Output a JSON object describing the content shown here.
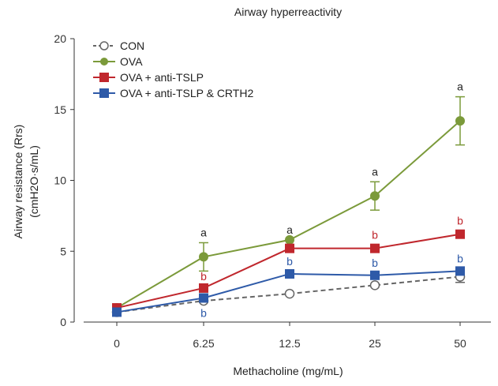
{
  "chart_data": {
    "type": "line",
    "title": "Airway hyperreactivity",
    "xlabel": "Methacholine (mg/mL)",
    "ylabel_line1": "Airway resistance (Rrs)",
    "ylabel_line2": "(cmH2O·s/mL)",
    "categories": [
      "0",
      "6.25",
      "12.5",
      "25",
      "50"
    ],
    "ylim": [
      0,
      20
    ],
    "yticks": [
      "0",
      "5",
      "10",
      "15",
      "20"
    ],
    "legend_position": "top-left",
    "grid": false,
    "series": [
      {
        "name": "CON",
        "color": "#666666",
        "marker": "open-circle",
        "line": "dashed",
        "values": [
          0.7,
          1.5,
          2.0,
          2.6,
          3.2
        ],
        "errors": [
          0,
          0,
          0,
          0,
          0.4
        ],
        "annotations": [
          "",
          "",
          "",
          "",
          ""
        ]
      },
      {
        "name": "OVA",
        "color": "#7b9a3a",
        "marker": "filled-circle",
        "line": "solid",
        "values": [
          1.0,
          4.6,
          5.8,
          8.9,
          14.2
        ],
        "errors": [
          0,
          1.0,
          0,
          1.0,
          1.7
        ],
        "annotations": [
          "",
          "a",
          "a",
          "a",
          "a"
        ]
      },
      {
        "name": "OVA + anti-TSLP",
        "color": "#c0272d",
        "marker": "filled-square",
        "line": "solid",
        "values": [
          1.0,
          2.4,
          5.2,
          5.2,
          6.2
        ],
        "errors": [
          0,
          0,
          0,
          0,
          0
        ],
        "annotations": [
          "",
          "b",
          "",
          "b",
          "b"
        ]
      },
      {
        "name": "OVA + anti-TSLP & CRTH2",
        "color": "#2e5aa8",
        "marker": "filled-square",
        "line": "solid",
        "values": [
          0.7,
          1.7,
          3.4,
          3.3,
          3.6
        ],
        "errors": [
          0,
          0,
          0,
          0,
          0
        ],
        "annotations": [
          "",
          "b",
          "b",
          "b",
          "b"
        ]
      }
    ]
  }
}
